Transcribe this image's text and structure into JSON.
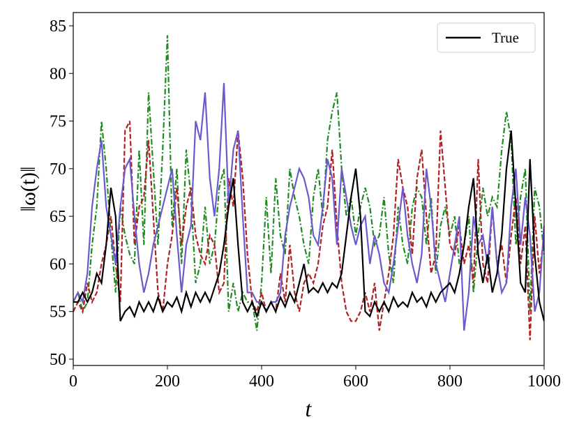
{
  "chart_data": {
    "type": "line",
    "xlabel": "t",
    "ylabel": "‖ω(t)‖",
    "x": [
      0,
      10,
      20,
      30,
      40,
      50,
      60,
      70,
      80,
      90,
      100,
      110,
      120,
      130,
      140,
      150,
      160,
      170,
      180,
      190,
      200,
      210,
      220,
      230,
      240,
      250,
      260,
      270,
      280,
      290,
      300,
      310,
      320,
      330,
      340,
      350,
      360,
      370,
      380,
      390,
      400,
      410,
      420,
      430,
      440,
      450,
      460,
      470,
      480,
      490,
      500,
      510,
      520,
      530,
      540,
      550,
      560,
      570,
      580,
      590,
      600,
      610,
      620,
      630,
      640,
      650,
      660,
      670,
      680,
      690,
      700,
      710,
      720,
      730,
      740,
      750,
      760,
      770,
      780,
      790,
      800,
      810,
      820,
      830,
      840,
      850,
      860,
      870,
      880,
      890,
      900,
      910,
      920,
      930,
      940,
      950,
      960,
      970,
      980,
      990,
      1000
    ],
    "series": [
      {
        "color": "#1f8a1f",
        "linestyle": "dashdot",
        "values": [
          56,
          57,
          55,
          56,
          62,
          66,
          75,
          70,
          63,
          57,
          66,
          63,
          61,
          60,
          72,
          62,
          78,
          70,
          62,
          72,
          84,
          64,
          70,
          60,
          72,
          67,
          58,
          60,
          66,
          60,
          62,
          68,
          70,
          55,
          58,
          55,
          57,
          56,
          56,
          53,
          58,
          67,
          59,
          69,
          63,
          61,
          70,
          67,
          65,
          62,
          60,
          67,
          70,
          65,
          73,
          76,
          78,
          70,
          65,
          67,
          63,
          66,
          68,
          66,
          62,
          63,
          67,
          61,
          58,
          66,
          62,
          60,
          66,
          68,
          67,
          62,
          67,
          59,
          64,
          66,
          63,
          65,
          60,
          62,
          65,
          57,
          63,
          68,
          65,
          67,
          66,
          72,
          76,
          73,
          62,
          67,
          70,
          55,
          68,
          66,
          61
        ]
      },
      {
        "color": "#b02225",
        "linestyle": "dashed",
        "values": [
          55,
          56,
          55,
          58,
          56,
          57,
          60,
          62,
          65,
          60,
          56,
          74,
          75,
          62,
          66,
          67,
          73,
          65,
          57,
          55,
          60,
          63,
          68,
          62,
          66,
          68,
          63,
          61,
          60,
          63,
          62,
          57,
          58,
          69,
          66,
          74,
          69,
          61,
          56,
          55,
          57,
          55,
          56,
          55,
          59,
          56,
          62,
          57,
          55,
          58,
          59,
          58,
          60,
          64,
          66,
          72,
          64,
          58,
          55,
          54,
          54,
          55,
          57,
          55,
          58,
          53,
          56,
          59,
          63,
          71,
          68,
          66,
          61,
          69,
          72,
          65,
          59,
          61,
          74,
          68,
          62,
          61,
          64,
          60,
          62,
          58,
          71,
          60,
          58,
          66,
          60,
          62,
          58,
          63,
          67,
          60,
          64,
          52,
          65,
          59,
          63
        ]
      },
      {
        "color": "#6a5acd",
        "linestyle": "solid",
        "values": [
          56,
          57,
          56,
          59,
          66,
          70,
          73,
          66,
          63,
          60,
          66,
          70,
          71,
          65,
          60,
          57,
          59,
          62,
          64,
          66,
          68,
          70,
          63,
          57,
          62,
          64,
          75,
          73,
          78,
          69,
          65,
          70,
          79,
          66,
          72,
          74,
          65,
          57,
          57,
          56,
          56,
          55,
          56,
          56,
          57,
          63,
          66,
          68,
          70,
          69,
          67,
          63,
          62,
          66,
          71,
          69,
          62,
          70,
          67,
          64,
          62,
          64,
          65,
          60,
          63,
          61,
          58,
          57,
          60,
          64,
          68,
          63,
          60,
          58,
          61,
          70,
          66,
          60,
          58,
          56,
          59,
          62,
          65,
          53,
          57,
          65,
          62,
          63,
          60,
          66,
          60,
          57,
          58,
          66,
          70,
          62,
          67,
          63,
          55,
          57,
          64
        ]
      },
      {
        "name": "True",
        "color": "#000000",
        "linestyle": "solid",
        "values": [
          56,
          56,
          57,
          56,
          57,
          59,
          58,
          62,
          68,
          65,
          54,
          55,
          55.5,
          54.5,
          56,
          55,
          56,
          55,
          56.5,
          55,
          56,
          55.5,
          56.5,
          55,
          57,
          55.5,
          57,
          56,
          57,
          56,
          57.5,
          59,
          62,
          66,
          69,
          62,
          56,
          55,
          56,
          54.5,
          56,
          55,
          56,
          55,
          56.5,
          55.5,
          57,
          56,
          58,
          60,
          57,
          57.5,
          57,
          58,
          57,
          58,
          57.5,
          59,
          63,
          67,
          70,
          65,
          55,
          54.5,
          56,
          55,
          56,
          55,
          56.5,
          55.5,
          56,
          55.5,
          57,
          56,
          56.5,
          55.5,
          57,
          56,
          57,
          57.5,
          58,
          57,
          59,
          62,
          66,
          69,
          61,
          58,
          61,
          57,
          59,
          63,
          70,
          74,
          66,
          58,
          57,
          71,
          61,
          56,
          54
        ]
      }
    ],
    "xlim": [
      0,
      1000
    ],
    "xticks": [
      0,
      200,
      400,
      600,
      800,
      1000
    ],
    "ylim": [
      49.34,
      86.39
    ],
    "yticks": [
      50,
      55,
      60,
      65,
      70,
      75,
      80,
      85
    ],
    "grid": false,
    "legend": "upper right"
  }
}
